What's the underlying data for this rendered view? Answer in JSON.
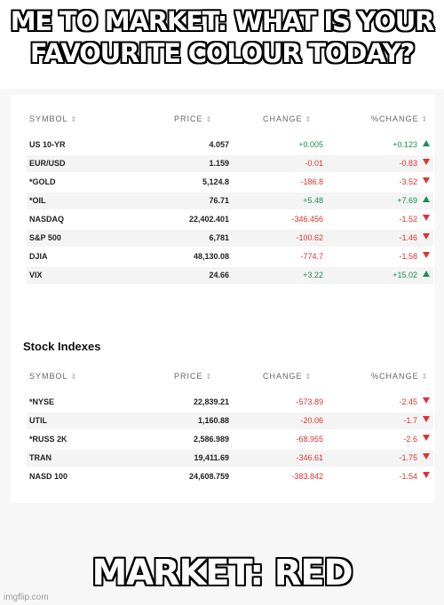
{
  "meme": {
    "top_caption": "ME TO MARKET: WHAT IS YOUR FAVOURITE COLOUR TODAY?",
    "bottom_caption": "MARKET: RED",
    "watermark": "imgflip.com"
  },
  "colors": {
    "positive": "#1a8f52",
    "negative": "#e03131"
  },
  "columns": {
    "symbol": "SYMBOL",
    "price": "PRICE",
    "change": "CHANGE",
    "pct_change": "%CHANGE"
  },
  "table1": {
    "rows": [
      {
        "symbol": "US 10-YR",
        "price": "4.057",
        "change": "+0.005",
        "pct": "+0.123",
        "dir": "up"
      },
      {
        "symbol": "EUR/USD",
        "price": "1.159",
        "change": "-0.01",
        "pct": "-0.83",
        "dir": "down"
      },
      {
        "symbol": "*GOLD",
        "price": "5,124.8",
        "change": "-186.8",
        "pct": "-3.52",
        "dir": "down"
      },
      {
        "symbol": "*OIL",
        "price": "76.71",
        "change": "+5.48",
        "pct": "+7.69",
        "dir": "up"
      },
      {
        "symbol": "NASDAQ",
        "price": "22,402.401",
        "change": "-346.456",
        "pct": "-1.52",
        "dir": "down"
      },
      {
        "symbol": "S&P 500",
        "price": "6,781",
        "change": "-100.62",
        "pct": "-1.46",
        "dir": "down"
      },
      {
        "symbol": "DJIA",
        "price": "48,130.08",
        "change": "-774.7",
        "pct": "-1.58",
        "dir": "down"
      },
      {
        "symbol": "VIX",
        "price": "24.66",
        "change": "+3.22",
        "pct": "+15.02",
        "dir": "up"
      }
    ]
  },
  "table2": {
    "title": "Stock Indexes",
    "rows": [
      {
        "symbol": "*NYSE",
        "price": "22,839.21",
        "change": "-573.89",
        "pct": "-2.45",
        "dir": "down"
      },
      {
        "symbol": "UTIL",
        "price": "1,160.88",
        "change": "-20.06",
        "pct": "-1.7",
        "dir": "down"
      },
      {
        "symbol": "*RUSS 2K",
        "price": "2,586.989",
        "change": "-68.955",
        "pct": "-2.6",
        "dir": "down"
      },
      {
        "symbol": "TRAN",
        "price": "19,411.69",
        "change": "-346.61",
        "pct": "-1.75",
        "dir": "down"
      },
      {
        "symbol": "NASD 100",
        "price": "24,608.759",
        "change": "-383.842",
        "pct": "-1.54",
        "dir": "down"
      }
    ]
  }
}
